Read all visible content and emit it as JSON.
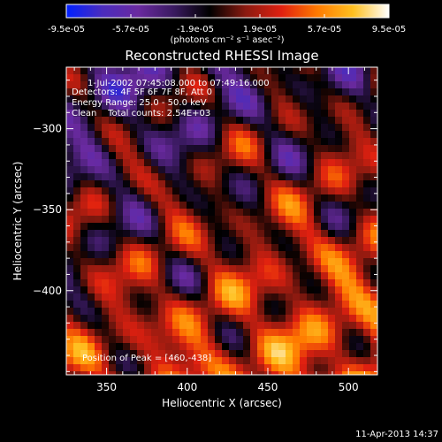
{
  "colorbar": {
    "tick_labels": [
      "-9.5e-05",
      "-5.7e-05",
      "-1.9e-05",
      "1.9e-05",
      "5.7e-05",
      "9.5e-05"
    ],
    "unit_label": "(photons cm⁻² s⁻¹ asec⁻²)",
    "range": [
      -9.5e-05,
      9.5e-05
    ]
  },
  "colors": {
    "background": "#000000",
    "text": "#ffffff",
    "colormap_stops": [
      "#0020ff",
      "#4a2cbe",
      "#6a2aa0",
      "#3a1a60",
      "#000000",
      "#8a1a10",
      "#e02010",
      "#ff7a00",
      "#ffc020",
      "#ffffff"
    ]
  },
  "chart_data": {
    "type": "heatmap",
    "title": "Reconstructed RHESSI Image",
    "xlabel": "Heliocentric X (arcsec)",
    "ylabel": "Heliocentric Y (arcsec)",
    "xlim": [
      325,
      518
    ],
    "ylim": [
      -452,
      -262
    ],
    "x_ticks": [
      350,
      400,
      450,
      500
    ],
    "y_ticks": [
      -300,
      -350,
      -400
    ],
    "x_tick_labels": [
      "350",
      "400",
      "450",
      "500"
    ],
    "y_tick_labels": [
      "−300",
      "−350",
      "−400"
    ],
    "annotations": [
      "1-Jul-2002 07:45:08.000 to 07:49:16.000",
      "Detectors: 4F 5F 6F 7F 8F, Att 0",
      "Energy Range: 25.0 - 50.0 keV",
      "Clean    Total counts: 2.54E+03"
    ],
    "peak_label": "Position of Peak = [460,-438]",
    "peak_position": [
      460,
      -438
    ],
    "grid": false
  },
  "footer": {
    "timestamp": "11-Apr-2013 14:37"
  }
}
